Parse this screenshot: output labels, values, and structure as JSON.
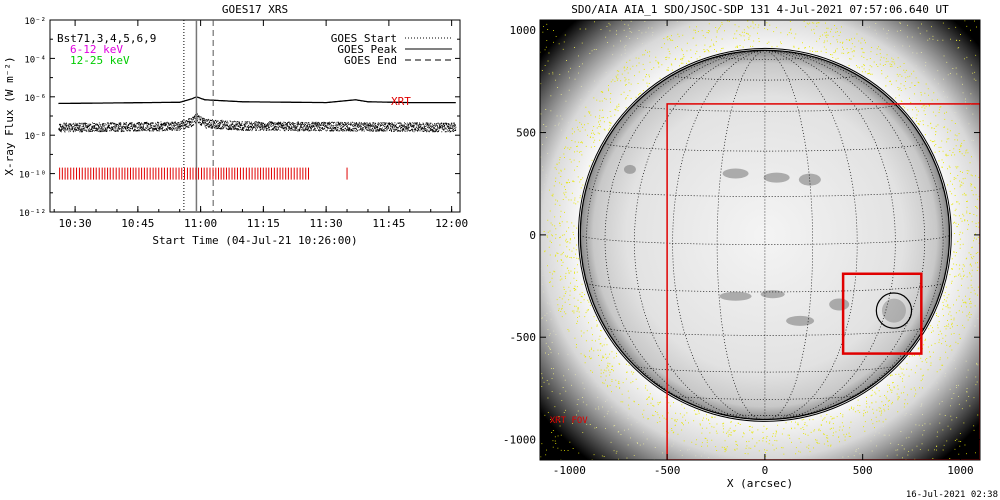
{
  "footer_timestamp": "16-Jul-2021 02:38",
  "chart_data": [
    {
      "type": "line",
      "title": "GOES17 XRS",
      "xlabel": "Start Time (04-Jul-21 10:26:00)",
      "ylabel": "X-ray Flux (W m⁻²)",
      "yscale": "log",
      "ylim_exponents": [
        -12,
        -2
      ],
      "xlim": [
        "10:24",
        "12:02"
      ],
      "x_ticks": [
        "10:30",
        "10:45",
        "11:00",
        "11:15",
        "11:30",
        "11:45",
        "12:00"
      ],
      "y_ticks": [
        "10⁻²",
        "10⁻⁴",
        "10⁻⁶",
        "10⁻⁸",
        "10⁻¹⁰",
        "10⁻¹²"
      ],
      "corner_text": [
        "Bst71,3,4,5,6,9",
        "6-12 keV",
        "12-25 keV"
      ],
      "corner_colors": [
        "#000000",
        "#e000e0",
        "#00cc00"
      ],
      "xrt_label": "XRT",
      "legend": [
        {
          "name": "GOES Start",
          "style": "dotted"
        },
        {
          "name": "GOES Peak",
          "style": "solid"
        },
        {
          "name": "GOES End",
          "style": "dashed"
        }
      ],
      "goes_start": "10:56",
      "goes_peak": "10:59",
      "goes_end": "11:03",
      "series": [
        {
          "name": "long channel",
          "color": "#000000",
          "x": [
            "10:26",
            "10:40",
            "10:55",
            "10:58",
            "10:59",
            "11:01",
            "11:10",
            "11:30",
            "11:37",
            "11:40",
            "11:50",
            "12:01"
          ],
          "y": [
            4.5e-07,
            4.8e-07,
            5.2e-07,
            8e-07,
            1e-06,
            7e-07,
            5.5e-07,
            5e-07,
            7e-07,
            5.5e-07,
            5e-07,
            5e-07
          ]
        },
        {
          "name": "short channel",
          "color": "#000000",
          "x": [
            "10:26",
            "10:40",
            "10:55",
            "10:58",
            "10:59",
            "11:01",
            "11:10",
            "11:30",
            "11:50",
            "12:01"
          ],
          "y": [
            2.5e-08,
            2.6e-08,
            3e-08,
            5e-08,
            8e-08,
            4e-08,
            3e-08,
            2.8e-08,
            2.6e-08,
            2.5e-08
          ]
        }
      ],
      "xrt_observation_span": [
        "10:26",
        "11:26"
      ],
      "xrt_isolated_mark": "11:35",
      "xrt_level": 1e-10
    },
    {
      "type": "image",
      "title": "SDO/AIA AIA_1 SDO/JSOC-SDP 131  4-Jul-2021 07:57:06.640 UT",
      "xlabel": "X (arcsec)",
      "ylabel": "",
      "xlim": [
        -1150,
        1100
      ],
      "ylim": [
        -1100,
        1050
      ],
      "x_ticks": [
        "-1000",
        "-500",
        "0",
        "500",
        "1000"
      ],
      "y_ticks": [
        "1000",
        "500",
        "0",
        "-500",
        "-1000"
      ],
      "solar_radius_arcsec": 944,
      "fov_label": "XRT FOV",
      "xrt_fov_box": {
        "x": [
          -500,
          1100
        ],
        "y": [
          -1100,
          640
        ]
      },
      "region_box": {
        "x": [
          400,
          800
        ],
        "y": [
          -580,
          -190
        ]
      },
      "region_circle": {
        "center": [
          660,
          -370
        ],
        "radius": 90
      }
    }
  ]
}
